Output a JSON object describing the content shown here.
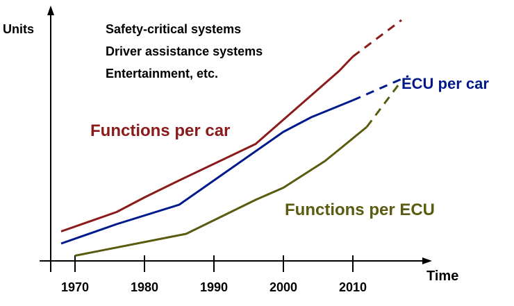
{
  "chart_data": {
    "type": "line",
    "title": "",
    "xlabel": "Time",
    "ylabel": "Units",
    "xlim": [
      1965,
      2030
    ],
    "ylim": [
      0,
      100
    ],
    "x_ticks": [
      1970,
      1980,
      1990,
      2000,
      2010
    ],
    "grid": false,
    "annotations": [
      "Safety-critical systems",
      "Driver assistance systems",
      "Entertainment, etc."
    ],
    "series": [
      {
        "name": "Functions per car",
        "color": "#8b1a1a",
        "points": [
          [
            1968,
            11
          ],
          [
            1976,
            19
          ],
          [
            1980,
            25
          ],
          [
            1985,
            32
          ],
          [
            1996,
            47
          ],
          [
            2000,
            57
          ],
          [
            2004,
            67
          ],
          [
            2008,
            77
          ],
          [
            2010,
            83
          ]
        ],
        "projection": [
          [
            2010,
            83
          ],
          [
            2017,
            98
          ]
        ]
      },
      {
        "name": "ECU per car",
        "color": "#001a8c",
        "points": [
          [
            1968,
            6
          ],
          [
            1976,
            14
          ],
          [
            1985,
            22
          ],
          [
            1993,
            38
          ],
          [
            2000,
            52
          ],
          [
            2004,
            58
          ],
          [
            2010,
            65
          ]
        ],
        "projection": [
          [
            2010,
            65
          ],
          [
            2018,
            75
          ]
        ]
      },
      {
        "name": "Functions per ECU",
        "color": "#5a5a10",
        "points": [
          [
            1970,
            1
          ],
          [
            1986,
            10
          ],
          [
            1996,
            24
          ],
          [
            2000,
            29
          ],
          [
            2006,
            40
          ],
          [
            2012,
            54
          ]
        ],
        "projection": [
          [
            2012,
            54
          ],
          [
            2017,
            73
          ]
        ]
      }
    ]
  }
}
